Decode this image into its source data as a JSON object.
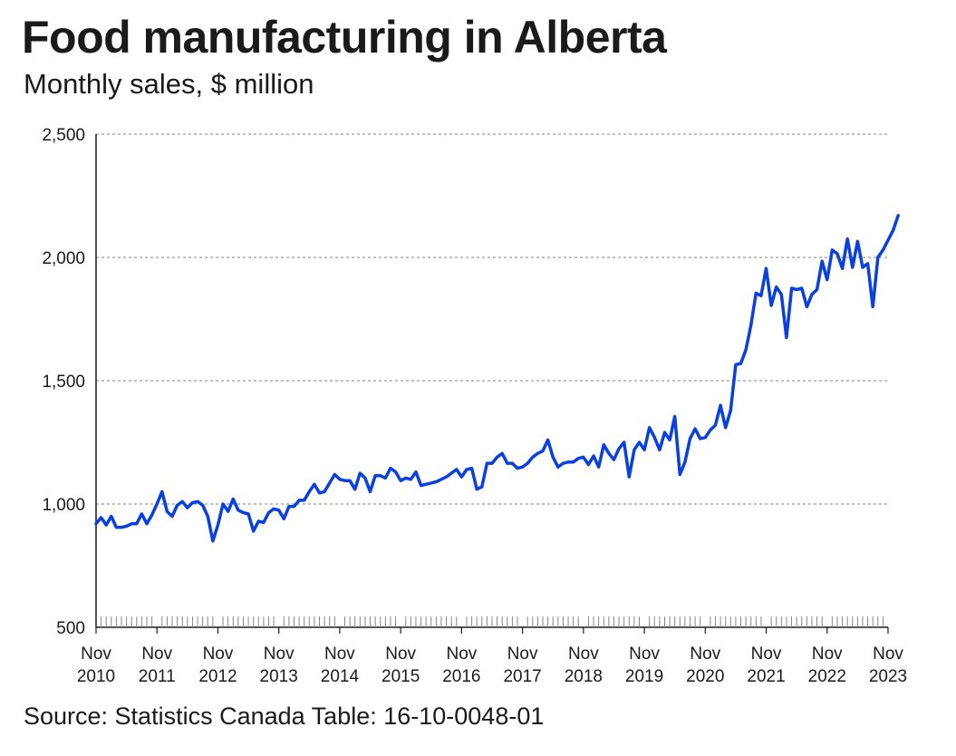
{
  "title": "Food manufacturing in Alberta",
  "subtitle": "Monthly sales, $ million",
  "source": "Source: Statistics Canada Table: 16-10-0048-01",
  "colors": {
    "line": "#0a3fe0",
    "grid": "#9a9a9a",
    "axis": "#1a1a1a"
  },
  "chart_data": {
    "type": "line",
    "title": "Food manufacturing in Alberta",
    "subtitle": "Monthly sales, $ million",
    "xlabel": "",
    "ylabel": "",
    "ylim": [
      500,
      2500
    ],
    "yticks": [
      500,
      1000,
      1500,
      2000,
      2500
    ],
    "ytick_labels": [
      "500",
      "1,000",
      "1,500",
      "2,000",
      "2,500"
    ],
    "x_start": "2010-11",
    "x_end": "2023-11",
    "xtick_labels": [
      [
        "Nov",
        "2010"
      ],
      [
        "Nov",
        "2011"
      ],
      [
        "Nov",
        "2012"
      ],
      [
        "Nov",
        "2013"
      ],
      [
        "Nov",
        "2014"
      ],
      [
        "Nov",
        "2015"
      ],
      [
        "Nov",
        "2016"
      ],
      [
        "Nov",
        "2017"
      ],
      [
        "Nov",
        "2018"
      ],
      [
        "Nov",
        "2019"
      ],
      [
        "Nov",
        "2020"
      ],
      [
        "Nov",
        "2021"
      ],
      [
        "Nov",
        "2022"
      ],
      [
        "Nov",
        "2023"
      ]
    ],
    "grid": true,
    "series": [
      {
        "values": [
          920,
          945,
          915,
          950,
          905,
          905,
          910,
          920,
          920,
          960,
          920,
          955,
          1000,
          1050,
          970,
          950,
          995,
          1010,
          985,
          1005,
          1010,
          995,
          950,
          850,
          915,
          1000,
          970,
          1020,
          975,
          965,
          960,
          890,
          930,
          925,
          965,
          980,
          975,
          940,
          990,
          990,
          1015,
          1015,
          1050,
          1080,
          1045,
          1050,
          1085,
          1120,
          1100,
          1095,
          1095,
          1060,
          1125,
          1105,
          1050,
          1115,
          1115,
          1105,
          1145,
          1130,
          1095,
          1105,
          1100,
          1130,
          1075,
          1080,
          1085,
          1090,
          1100,
          1110,
          1125,
          1140,
          1110,
          1140,
          1145,
          1060,
          1070,
          1165,
          1165,
          1190,
          1205,
          1165,
          1165,
          1145,
          1150,
          1165,
          1190,
          1205,
          1215,
          1260,
          1190,
          1150,
          1165,
          1170,
          1170,
          1185,
          1190,
          1160,
          1195,
          1150,
          1240,
          1205,
          1180,
          1225,
          1250,
          1110,
          1220,
          1250,
          1220,
          1310,
          1270,
          1220,
          1290,
          1260,
          1355,
          1120,
          1170,
          1265,
          1305,
          1265,
          1270,
          1300,
          1320,
          1400,
          1310,
          1380,
          1565,
          1570,
          1625,
          1725,
          1855,
          1845,
          1955,
          1805,
          1880,
          1850,
          1675,
          1875,
          1870,
          1875,
          1800,
          1850,
          1870,
          1985,
          1910,
          2030,
          2015,
          1955,
          2075,
          1960,
          2065,
          1960,
          1975,
          1800,
          2000,
          2030,
          2070,
          2110,
          2170
        ]
      }
    ]
  }
}
